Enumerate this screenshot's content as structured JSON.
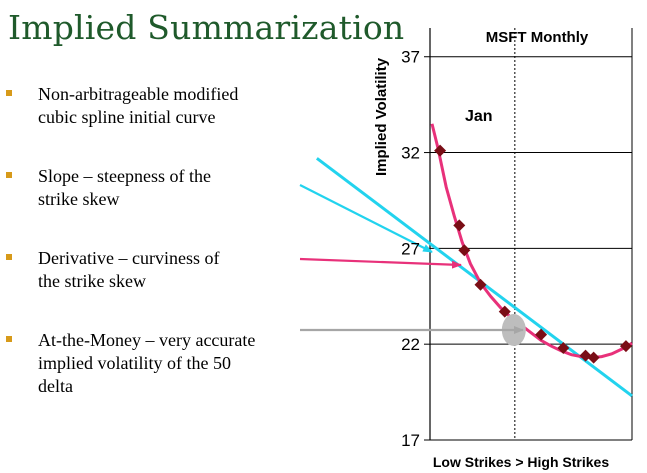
{
  "slide": {
    "title": "Implied Summarization",
    "bullets": [
      {
        "lines": [
          "Non-arbitrageable  modified",
          "cubic spline  initial curve"
        ]
      },
      {
        "lines": [
          "Slope – steepness      of the",
          "strike skew"
        ]
      },
      {
        "lines": [
          "Derivative     – curviness of",
          "the strike skew"
        ]
      },
      {
        "lines": [
          "At-the-Money – very accurate",
          "implied volatility of the 50",
          "delta"
        ]
      }
    ],
    "colors": {
      "title": "#1f5a2b",
      "bullet_marker": "#d79a1a",
      "slope_arrow": "#22d3ee",
      "derivative_arrow": "#e8317a",
      "atm_arrow": "#a6a6a6"
    }
  },
  "chart_data": {
    "type": "scatter",
    "title": "MSFT Monthly",
    "annotation": "Jan",
    "ylabel": "Implied Volatility",
    "xlabel": "Low Strikes  >  High Strikes",
    "ylim": [
      17,
      38.5
    ],
    "xlim": [
      0,
      100
    ],
    "yticks": [
      17,
      22,
      27,
      32,
      37
    ],
    "grid": true,
    "points": [
      {
        "x": 5,
        "y": 32.1
      },
      {
        "x": 14.5,
        "y": 28.2
      },
      {
        "x": 17,
        "y": 26.9
      },
      {
        "x": 25,
        "y": 25.1
      },
      {
        "x": 37,
        "y": 23.7
      },
      {
        "x": 55,
        "y": 22.5
      },
      {
        "x": 66,
        "y": 21.8
      },
      {
        "x": 77,
        "y": 21.4
      },
      {
        "x": 81,
        "y": 21.3
      },
      {
        "x": 97,
        "y": 21.9
      }
    ],
    "spline": [
      [
        1,
        33.5
      ],
      [
        4,
        32.2
      ],
      [
        8,
        30.2
      ],
      [
        12,
        28.7
      ],
      [
        16,
        27.3
      ],
      [
        20,
        26.2
      ],
      [
        25,
        25.2
      ],
      [
        30,
        24.5
      ],
      [
        35,
        23.9
      ],
      [
        40,
        23.4
      ],
      [
        45,
        23.0
      ],
      [
        50,
        22.6
      ],
      [
        55,
        22.2
      ],
      [
        60,
        21.9
      ],
      [
        65,
        21.65
      ],
      [
        70,
        21.45
      ],
      [
        75,
        21.35
      ],
      [
        80,
        21.3
      ],
      [
        85,
        21.35
      ],
      [
        90,
        21.5
      ],
      [
        95,
        21.75
      ],
      [
        100,
        22.05
      ]
    ],
    "slope_line": [
      [
        -56,
        31.7
      ],
      [
        100,
        19.3
      ]
    ],
    "atm_point": {
      "x": 42,
      "y": 23.0
    },
    "atm_vline_x": 42
  }
}
